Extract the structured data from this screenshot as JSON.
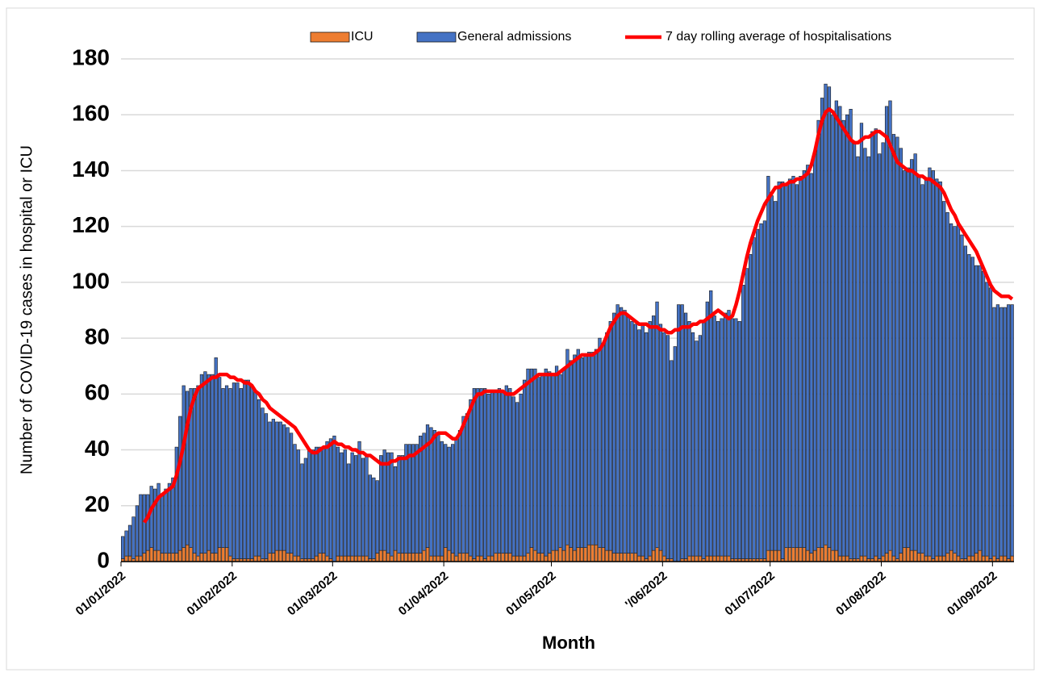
{
  "chart_data": {
    "type": "bar",
    "stacked": true,
    "x_label": "Month",
    "y_label": "Number of COVID-19 cases in hospital or ICU",
    "ylim": [
      0,
      180
    ],
    "yticks": [
      0,
      20,
      40,
      60,
      80,
      100,
      120,
      140,
      160,
      180
    ],
    "grid": true,
    "legend": "top",
    "categories": [
      "01/01/2022",
      null,
      null,
      null,
      null,
      null,
      null,
      null,
      null,
      null,
      null,
      null,
      null,
      null,
      null,
      null,
      null,
      null,
      null,
      null,
      null,
      null,
      null,
      null,
      null,
      null,
      null,
      null,
      null,
      null,
      null,
      "01/02/2022",
      null,
      null,
      null,
      null,
      null,
      null,
      null,
      null,
      null,
      null,
      null,
      null,
      null,
      null,
      null,
      null,
      null,
      null,
      null,
      null,
      null,
      null,
      null,
      null,
      null,
      null,
      null,
      "01/03/2022",
      null,
      null,
      null,
      null,
      null,
      null,
      null,
      null,
      null,
      null,
      null,
      null,
      null,
      null,
      null,
      null,
      null,
      null,
      null,
      null,
      null,
      null,
      null,
      null,
      null,
      null,
      null,
      null,
      null,
      null,
      "01/04/2022",
      null,
      null,
      null,
      null,
      null,
      null,
      null,
      null,
      null,
      null,
      null,
      null,
      null,
      null,
      null,
      null,
      null,
      null,
      null,
      null,
      null,
      null,
      null,
      null,
      null,
      null,
      null,
      null,
      null,
      "01/05/2022",
      null,
      null,
      null,
      null,
      null,
      null,
      null,
      null,
      null,
      null,
      null,
      null,
      null,
      null,
      null,
      null,
      null,
      null,
      null,
      null,
      null,
      null,
      null,
      null,
      null,
      null,
      null,
      null,
      null,
      null,
      "'/06/2022",
      null,
      null,
      null,
      null,
      null,
      null,
      null,
      null,
      null,
      null,
      null,
      null,
      null,
      null,
      null,
      null,
      null,
      null,
      null,
      null,
      null,
      null,
      null,
      null,
      null,
      null,
      null,
      null,
      null,
      "01/07/2022",
      null,
      null,
      null,
      null,
      null,
      null,
      null,
      null,
      null,
      null,
      null,
      null,
      null,
      null,
      null,
      null,
      null,
      null,
      null,
      null,
      null,
      null,
      null,
      null,
      null,
      null,
      null,
      null,
      null,
      null,
      "01/08/2022",
      null,
      null,
      null,
      null,
      null,
      null,
      null,
      null,
      null,
      null,
      null,
      null,
      null,
      null,
      null,
      null,
      null,
      null,
      null,
      null,
      null,
      null,
      null,
      null,
      null,
      null,
      null,
      null,
      null,
      null,
      "01/09/2022",
      null,
      null,
      null,
      null,
      null
    ],
    "series": [
      {
        "name": "ICU",
        "color": "#ed7d31",
        "values": [
          1,
          2,
          2,
          1,
          2,
          2,
          3,
          4,
          5,
          4,
          4,
          3,
          3,
          3,
          3,
          3,
          4,
          5,
          6,
          5,
          3,
          2,
          3,
          3,
          4,
          3,
          3,
          5,
          5,
          5,
          2,
          1,
          1,
          1,
          1,
          1,
          1,
          2,
          2,
          1,
          1,
          3,
          3,
          4,
          4,
          4,
          3,
          3,
          2,
          2,
          1,
          1,
          1,
          1,
          2,
          3,
          3,
          2,
          1,
          0,
          2,
          2,
          2,
          2,
          2,
          2,
          2,
          2,
          2,
          1,
          1,
          3,
          4,
          4,
          3,
          2,
          4,
          3,
          3,
          3,
          3,
          3,
          3,
          3,
          4,
          5,
          2,
          2,
          2,
          2,
          5,
          4,
          3,
          2,
          3,
          3,
          3,
          2,
          1,
          2,
          2,
          1,
          2,
          2,
          3,
          3,
          3,
          3,
          3,
          2,
          2,
          2,
          2,
          3,
          5,
          4,
          3,
          3,
          2,
          3,
          4,
          4,
          5,
          4,
          6,
          5,
          4,
          5,
          5,
          5,
          6,
          6,
          6,
          5,
          5,
          4,
          4,
          3,
          3,
          3,
          3,
          3,
          3,
          3,
          2,
          2,
          1,
          2,
          4,
          5,
          4,
          2,
          1,
          1,
          0,
          0,
          1,
          1,
          2,
          2,
          2,
          2,
          1,
          2,
          2,
          2,
          2,
          2,
          2,
          2,
          1,
          1,
          1,
          1,
          1,
          1,
          1,
          1,
          1,
          1,
          4,
          4,
          4,
          4,
          1,
          5,
          5,
          5,
          5,
          5,
          5,
          4,
          3,
          4,
          5,
          5,
          6,
          5,
          4,
          4,
          2,
          2,
          2,
          1,
          1,
          1,
          2,
          2,
          1,
          1,
          2,
          1,
          2,
          3,
          4,
          2,
          1,
          3,
          5,
          5,
          4,
          4,
          3,
          3,
          2,
          2,
          1,
          2,
          2,
          2,
          3,
          4,
          3,
          2,
          1,
          1,
          2,
          2,
          3,
          4,
          2,
          2,
          1,
          2,
          1,
          2,
          2,
          1,
          2
        ]
      },
      {
        "name": "General admissions",
        "color": "#4472c4",
        "values": [
          8,
          9,
          11,
          15,
          18,
          22,
          21,
          20,
          22,
          22,
          24,
          21,
          23,
          25,
          27,
          38,
          48,
          58,
          55,
          57,
          59,
          61,
          64,
          65,
          63,
          64,
          70,
          61,
          57,
          58,
          60,
          63,
          63,
          61,
          64,
          64,
          62,
          59,
          56,
          54,
          52,
          47,
          48,
          46,
          46,
          45,
          45,
          43,
          40,
          38,
          34,
          36,
          39,
          39,
          39,
          38,
          38,
          41,
          43,
          45,
          39,
          37,
          38,
          33,
          37,
          36,
          41,
          35,
          36,
          30,
          29,
          26,
          34,
          36,
          36,
          37,
          30,
          35,
          35,
          39,
          39,
          39,
          39,
          42,
          42,
          44,
          46,
          45,
          44,
          41,
          37,
          37,
          39,
          42,
          44,
          49,
          50,
          56,
          61,
          60,
          60,
          61,
          58,
          59,
          58,
          59,
          58,
          60,
          59,
          57,
          55,
          58,
          63,
          66,
          64,
          65,
          63,
          64,
          67,
          65,
          63,
          66,
          62,
          65,
          70,
          67,
          70,
          71,
          68,
          69,
          69,
          69,
          70,
          75,
          73,
          78,
          82,
          86,
          89,
          88,
          87,
          85,
          83,
          82,
          81,
          83,
          81,
          84,
          84,
          88,
          81,
          80,
          80,
          71,
          77,
          92,
          91,
          88,
          84,
          80,
          77,
          79,
          85,
          91,
          95,
          86,
          84,
          85,
          87,
          88,
          86,
          86,
          85,
          98,
          104,
          109,
          115,
          118,
          120,
          121,
          134,
          127,
          125,
          132,
          135,
          130,
          132,
          133,
          130,
          133,
          135,
          138,
          136,
          143,
          153,
          161,
          165,
          165,
          156,
          161,
          161,
          156,
          158,
          161,
          149,
          144,
          155,
          146,
          144,
          153,
          153,
          145,
          148,
          160,
          161,
          151,
          151,
          145,
          135,
          136,
          140,
          142,
          135,
          132,
          135,
          139,
          139,
          135,
          134,
          127,
          122,
          117,
          117,
          119,
          116,
          112,
          108,
          107,
          103,
          102,
          102,
          98,
          97,
          89,
          91,
          89,
          89,
          91,
          90
        ]
      },
      {
        "name": "7 day rolling average of hospitalisations",
        "type": "line",
        "color": "#ff0000",
        "values": [
          null,
          null,
          null,
          null,
          null,
          null,
          14,
          16,
          19,
          21,
          23,
          24,
          25,
          26,
          27,
          31,
          36,
          42,
          49,
          55,
          59,
          62,
          63,
          64,
          65,
          66,
          66,
          67,
          67,
          67,
          66,
          66,
          65,
          65,
          64,
          64,
          63,
          61,
          60,
          58,
          57,
          55,
          54,
          53,
          52,
          51,
          50,
          49,
          48,
          46,
          44,
          42,
          40,
          39,
          39,
          40,
          41,
          41,
          42,
          43,
          42,
          42,
          41,
          41,
          40,
          40,
          39,
          39,
          38,
          38,
          37,
          36,
          35,
          35,
          35,
          36,
          36,
          37,
          37,
          37,
          38,
          38,
          39,
          40,
          41,
          42,
          43,
          45,
          46,
          46,
          46,
          45,
          44,
          44,
          46,
          49,
          52,
          55,
          58,
          60,
          60,
          61,
          61,
          61,
          61,
          61,
          61,
          60,
          60,
          60,
          61,
          62,
          63,
          64,
          65,
          66,
          67,
          67,
          67,
          67,
          67,
          67,
          68,
          69,
          70,
          71,
          72,
          73,
          74,
          74,
          74,
          74,
          75,
          76,
          78,
          81,
          84,
          86,
          88,
          89,
          89,
          88,
          87,
          86,
          85,
          85,
          85,
          84,
          84,
          84,
          83,
          83,
          82,
          82,
          83,
          83,
          84,
          84,
          84,
          85,
          85,
          86,
          86,
          87,
          88,
          89,
          90,
          89,
          88,
          87,
          88,
          92,
          97,
          103,
          109,
          114,
          118,
          122,
          125,
          128,
          130,
          132,
          134,
          134,
          135,
          135,
          136,
          136,
          137,
          137,
          138,
          139,
          142,
          147,
          153,
          158,
          161,
          162,
          161,
          159,
          157,
          155,
          153,
          151,
          150,
          150,
          151,
          152,
          152,
          153,
          154,
          154,
          153,
          152,
          149,
          146,
          143,
          142,
          141,
          140,
          140,
          139,
          138,
          138,
          137,
          137,
          136,
          135,
          134,
          132,
          129,
          126,
          124,
          121,
          119,
          117,
          115,
          113,
          111,
          108,
          105,
          102,
          99,
          97,
          96,
          95,
          95,
          95,
          94
        ]
      }
    ]
  }
}
